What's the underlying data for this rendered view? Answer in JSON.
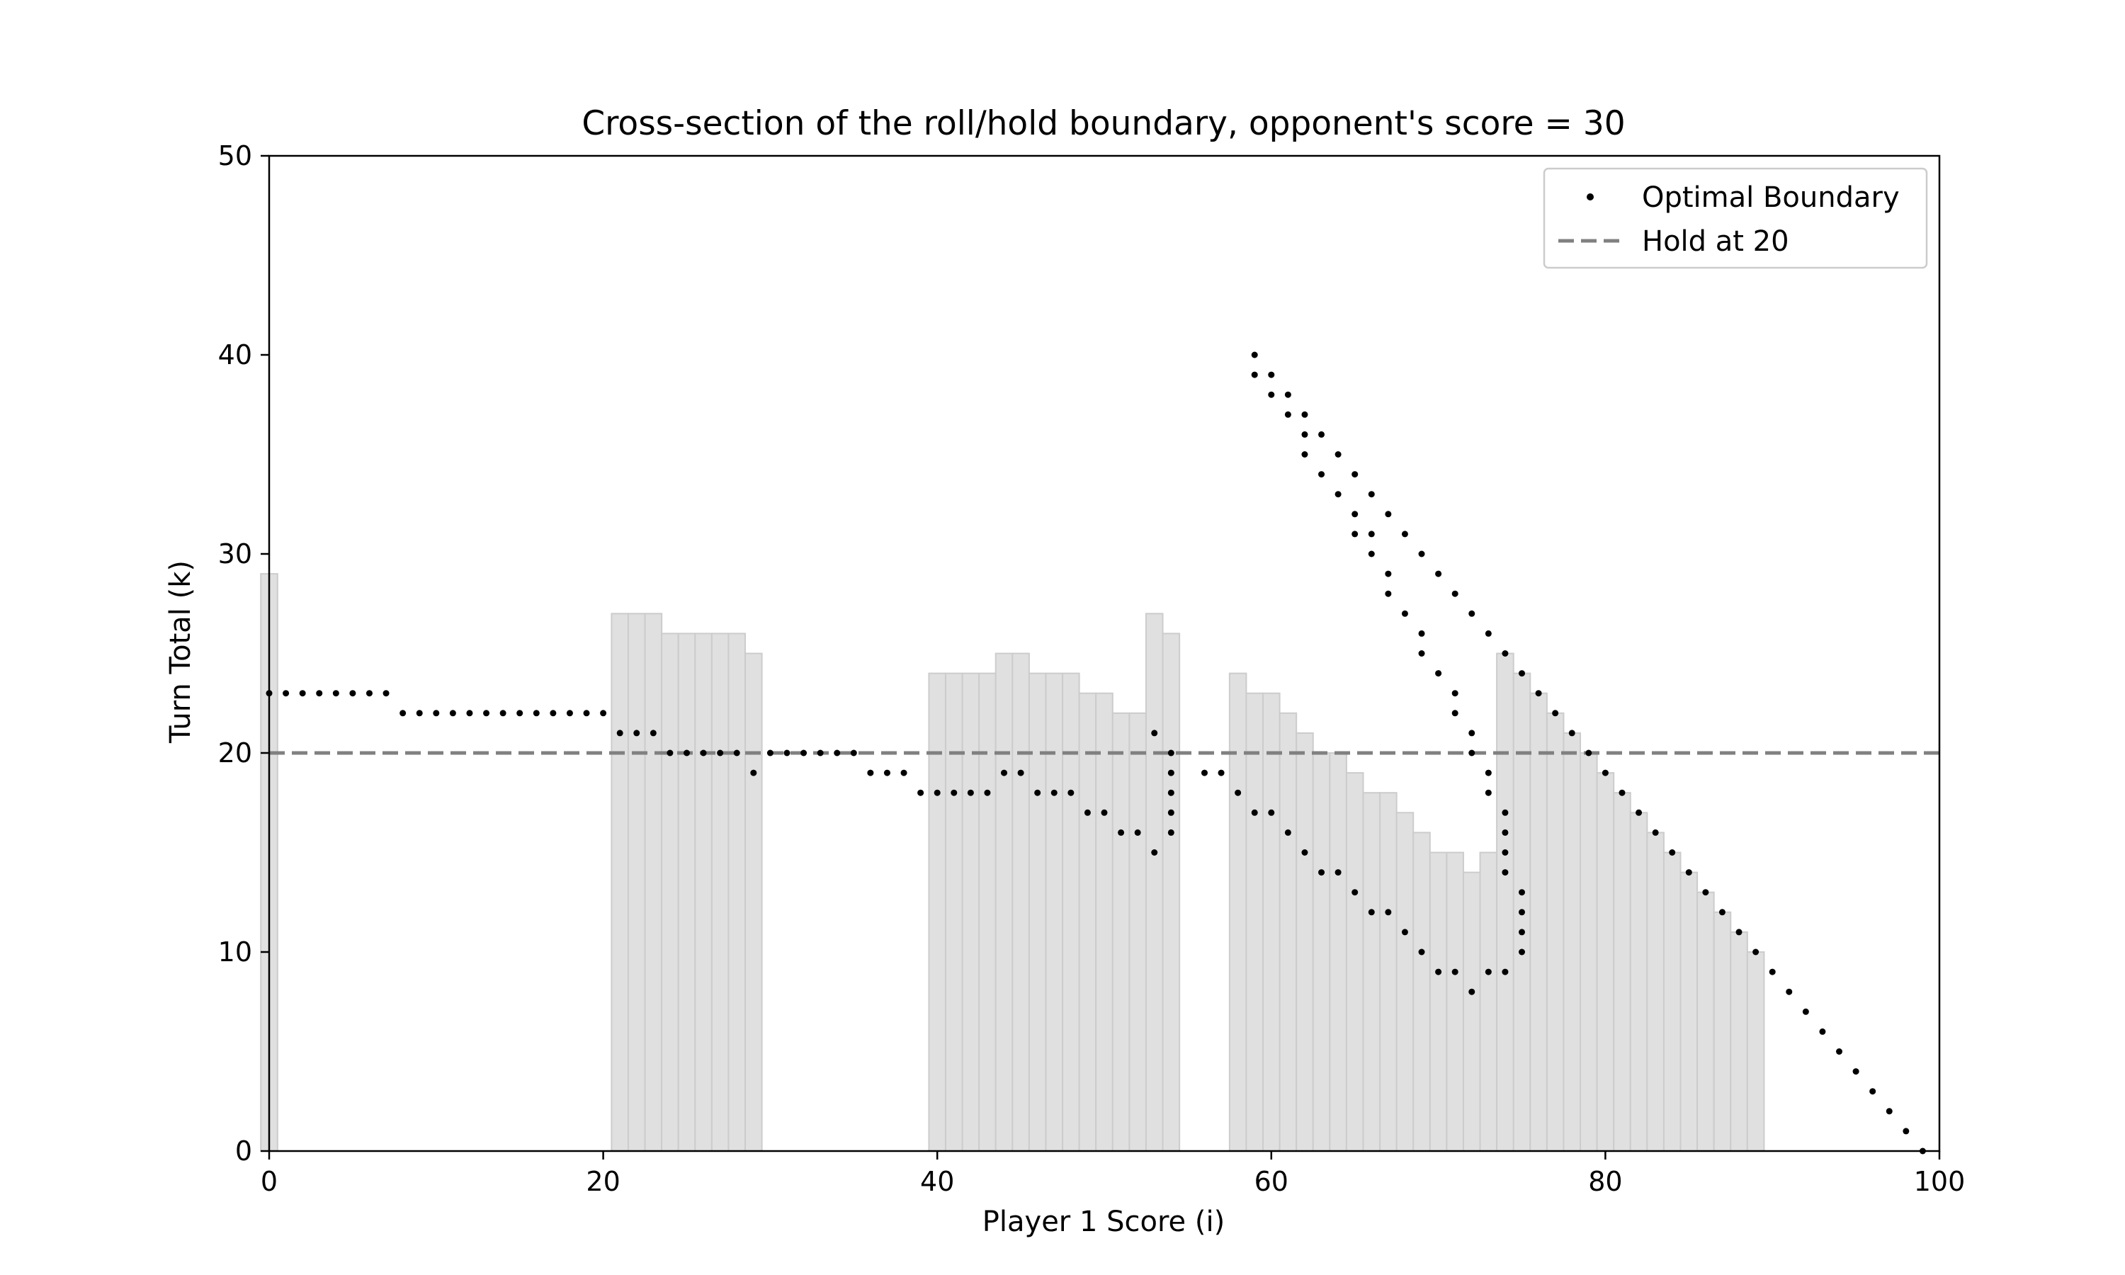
{
  "chart_data": {
    "type": "scatter",
    "title": "Cross-section of the roll/hold boundary, opponent's score = 30",
    "xlabel": "Player 1 Score (i)",
    "ylabel": "Turn Total (k)",
    "xlim": [
      0,
      100
    ],
    "ylim": [
      0,
      50
    ],
    "xticks": [
      0,
      20,
      40,
      60,
      80,
      100
    ],
    "yticks": [
      0,
      10,
      20,
      30,
      40,
      50
    ],
    "grid": false,
    "legend_position": "top-right",
    "colors": {
      "bars_fill": "#e0e0e0",
      "bars_edge": "#cccccc",
      "boundary_points": "#000000",
      "hold_line": "#808080"
    },
    "hold_line": {
      "name": "Hold at 20",
      "y": 20,
      "style": "dashed"
    },
    "bars": [
      {
        "x": 0,
        "height": 29
      },
      {
        "x": 21,
        "height": 27
      },
      {
        "x": 22,
        "height": 27
      },
      {
        "x": 23,
        "height": 27
      },
      {
        "x": 24,
        "height": 26
      },
      {
        "x": 25,
        "height": 26
      },
      {
        "x": 26,
        "height": 26
      },
      {
        "x": 27,
        "height": 26
      },
      {
        "x": 28,
        "height": 26
      },
      {
        "x": 29,
        "height": 25
      },
      {
        "x": 40,
        "height": 24
      },
      {
        "x": 41,
        "height": 24
      },
      {
        "x": 42,
        "height": 24
      },
      {
        "x": 43,
        "height": 24
      },
      {
        "x": 44,
        "height": 25
      },
      {
        "x": 45,
        "height": 25
      },
      {
        "x": 46,
        "height": 24
      },
      {
        "x": 47,
        "height": 24
      },
      {
        "x": 48,
        "height": 24
      },
      {
        "x": 49,
        "height": 23
      },
      {
        "x": 50,
        "height": 23
      },
      {
        "x": 51,
        "height": 22
      },
      {
        "x": 52,
        "height": 22
      },
      {
        "x": 53,
        "height": 27
      },
      {
        "x": 54,
        "height": 26
      },
      {
        "x": 58,
        "height": 24
      },
      {
        "x": 59,
        "height": 23
      },
      {
        "x": 60,
        "height": 23
      },
      {
        "x": 61,
        "height": 22
      },
      {
        "x": 62,
        "height": 21
      },
      {
        "x": 63,
        "height": 20
      },
      {
        "x": 64,
        "height": 20
      },
      {
        "x": 65,
        "height": 19
      },
      {
        "x": 66,
        "height": 18
      },
      {
        "x": 67,
        "height": 18
      },
      {
        "x": 68,
        "height": 17
      },
      {
        "x": 69,
        "height": 16
      },
      {
        "x": 70,
        "height": 15
      },
      {
        "x": 71,
        "height": 15
      },
      {
        "x": 72,
        "height": 14
      },
      {
        "x": 73,
        "height": 15
      },
      {
        "x": 74,
        "height": 25
      },
      {
        "x": 75,
        "height": 24
      },
      {
        "x": 76,
        "height": 23
      },
      {
        "x": 77,
        "height": 22
      },
      {
        "x": 78,
        "height": 21
      },
      {
        "x": 79,
        "height": 20
      },
      {
        "x": 80,
        "height": 19
      },
      {
        "x": 81,
        "height": 18
      },
      {
        "x": 82,
        "height": 17
      },
      {
        "x": 83,
        "height": 16
      },
      {
        "x": 84,
        "height": 15
      },
      {
        "x": 85,
        "height": 14
      },
      {
        "x": 86,
        "height": 13
      },
      {
        "x": 87,
        "height": 12
      },
      {
        "x": 88,
        "height": 11
      },
      {
        "x": 89,
        "height": 10
      }
    ],
    "series": [
      {
        "name": "Optimal Boundary",
        "points": [
          [
            0,
            23
          ],
          [
            1,
            23
          ],
          [
            2,
            23
          ],
          [
            3,
            23
          ],
          [
            4,
            23
          ],
          [
            5,
            23
          ],
          [
            6,
            23
          ],
          [
            7,
            23
          ],
          [
            8,
            22
          ],
          [
            9,
            22
          ],
          [
            10,
            22
          ],
          [
            11,
            22
          ],
          [
            12,
            22
          ],
          [
            13,
            22
          ],
          [
            14,
            22
          ],
          [
            15,
            22
          ],
          [
            16,
            22
          ],
          [
            17,
            22
          ],
          [
            18,
            22
          ],
          [
            19,
            22
          ],
          [
            20,
            22
          ],
          [
            21,
            21
          ],
          [
            22,
            21
          ],
          [
            23,
            21
          ],
          [
            24,
            20
          ],
          [
            25,
            20
          ],
          [
            26,
            20
          ],
          [
            27,
            20
          ],
          [
            28,
            20
          ],
          [
            29,
            19
          ],
          [
            30,
            20
          ],
          [
            31,
            20
          ],
          [
            32,
            20
          ],
          [
            33,
            20
          ],
          [
            34,
            20
          ],
          [
            35,
            20
          ],
          [
            36,
            19
          ],
          [
            37,
            19
          ],
          [
            38,
            19
          ],
          [
            39,
            18
          ],
          [
            40,
            18
          ],
          [
            41,
            18
          ],
          [
            42,
            18
          ],
          [
            43,
            18
          ],
          [
            44,
            19
          ],
          [
            45,
            19
          ],
          [
            46,
            18
          ],
          [
            47,
            18
          ],
          [
            48,
            18
          ],
          [
            49,
            17
          ],
          [
            50,
            17
          ],
          [
            51,
            16
          ],
          [
            52,
            16
          ],
          [
            53,
            15
          ],
          [
            53,
            21
          ],
          [
            54,
            16
          ],
          [
            54,
            17
          ],
          [
            54,
            18
          ],
          [
            54,
            19
          ],
          [
            54,
            20
          ],
          [
            56,
            19
          ],
          [
            57,
            19
          ],
          [
            58,
            18
          ],
          [
            59,
            17
          ],
          [
            60,
            17
          ],
          [
            61,
            16
          ],
          [
            62,
            15
          ],
          [
            63,
            14
          ],
          [
            64,
            14
          ],
          [
            65,
            13
          ],
          [
            66,
            12
          ],
          [
            67,
            12
          ],
          [
            68,
            11
          ],
          [
            69,
            10
          ],
          [
            70,
            9
          ],
          [
            71,
            9
          ],
          [
            72,
            8
          ],
          [
            73,
            9
          ],
          [
            74,
            9
          ],
          [
            74,
            14
          ],
          [
            74,
            15
          ],
          [
            74,
            16
          ],
          [
            74,
            17
          ],
          [
            75,
            10
          ],
          [
            75,
            11
          ],
          [
            75,
            12
          ],
          [
            75,
            13
          ],
          [
            59,
            40
          ],
          [
            59,
            39
          ],
          [
            60,
            39
          ],
          [
            60,
            38
          ],
          [
            61,
            38
          ],
          [
            61,
            37
          ],
          [
            62,
            37
          ],
          [
            62,
            36
          ],
          [
            62,
            35
          ],
          [
            63,
            36
          ],
          [
            63,
            34
          ],
          [
            64,
            35
          ],
          [
            64,
            33
          ],
          [
            65,
            34
          ],
          [
            65,
            31
          ],
          [
            65,
            32
          ],
          [
            66,
            33
          ],
          [
            66,
            30
          ],
          [
            66,
            31
          ],
          [
            67,
            32
          ],
          [
            67,
            29
          ],
          [
            67,
            28
          ],
          [
            68,
            31
          ],
          [
            68,
            27
          ],
          [
            69,
            30
          ],
          [
            69,
            26
          ],
          [
            69,
            25
          ],
          [
            70,
            29
          ],
          [
            70,
            24
          ],
          [
            71,
            28
          ],
          [
            71,
            23
          ],
          [
            71,
            22
          ],
          [
            72,
            27
          ],
          [
            72,
            21
          ],
          [
            72,
            20
          ],
          [
            73,
            26
          ],
          [
            73,
            19
          ],
          [
            73,
            18
          ],
          [
            74,
            25
          ],
          [
            75,
            24
          ],
          [
            76,
            23
          ],
          [
            77,
            22
          ],
          [
            78,
            21
          ],
          [
            79,
            20
          ],
          [
            80,
            19
          ],
          [
            81,
            18
          ],
          [
            82,
            17
          ],
          [
            83,
            16
          ],
          [
            84,
            15
          ],
          [
            85,
            14
          ],
          [
            86,
            13
          ],
          [
            87,
            12
          ],
          [
            88,
            11
          ],
          [
            89,
            10
          ],
          [
            90,
            9
          ],
          [
            91,
            8
          ],
          [
            92,
            7
          ],
          [
            93,
            6
          ],
          [
            94,
            5
          ],
          [
            95,
            4
          ],
          [
            96,
            3
          ],
          [
            97,
            2
          ],
          [
            98,
            1
          ],
          [
            99,
            0
          ]
        ]
      }
    ]
  }
}
